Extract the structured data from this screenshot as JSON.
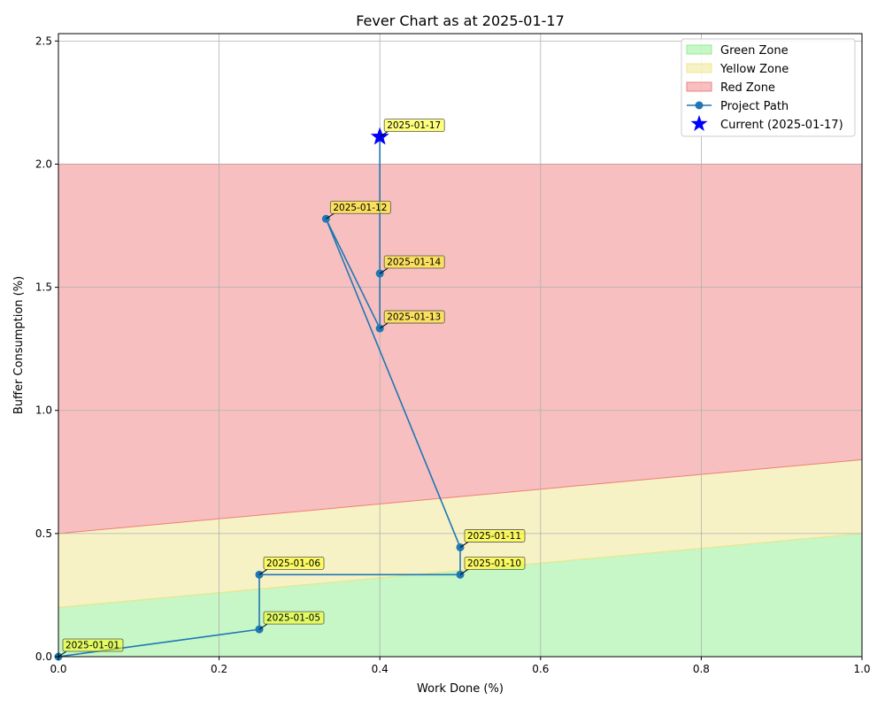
{
  "chart_data": {
    "type": "line",
    "title": "Fever Chart as at 2025-01-17",
    "xlabel": "Work Done (%)",
    "ylabel": "Buffer Consumption (%)",
    "xlim": [
      0,
      1
    ],
    "ylim": [
      0,
      2.53
    ],
    "xticks": [
      0.0,
      0.2,
      0.4,
      0.6,
      0.8,
      1.0
    ],
    "yticks": [
      0.0,
      0.5,
      1.0,
      1.5,
      2.0,
      2.5
    ],
    "xtick_labels": [
      "0.0",
      "0.2",
      "0.4",
      "0.6",
      "0.8",
      "1.0"
    ],
    "ytick_labels": [
      "0.0",
      "0.5",
      "1.0",
      "1.5",
      "2.0",
      "2.5"
    ],
    "grid": true,
    "legend_position": "top-right",
    "zones": [
      {
        "name": "Green Zone",
        "color": "#90ee90",
        "lower": [
          [
            0,
            0
          ],
          [
            1,
            0
          ]
        ],
        "upper": [
          [
            0,
            0.2
          ],
          [
            1,
            0.5
          ]
        ]
      },
      {
        "name": "Yellow Zone",
        "color": "#f0e68c",
        "lower": [
          [
            0,
            0.2
          ],
          [
            1,
            0.5
          ]
        ],
        "upper": [
          [
            0,
            0.5
          ],
          [
            1,
            0.8
          ]
        ]
      },
      {
        "name": "Red Zone",
        "color": "#f08080",
        "lower": [
          [
            0,
            0.5
          ],
          [
            1,
            0.8
          ]
        ],
        "upper": [
          [
            0,
            2.0
          ],
          [
            1,
            2.0
          ]
        ]
      }
    ],
    "series": [
      {
        "name": "Project Path",
        "color": "#1f77b4",
        "points": [
          {
            "x": 0.0,
            "y": 0.0,
            "label": "2025-01-01"
          },
          {
            "x": 0.25,
            "y": 0.111,
            "label": "2025-01-05"
          },
          {
            "x": 0.25,
            "y": 0.333,
            "label": "2025-01-06"
          },
          {
            "x": 0.5,
            "y": 0.333,
            "label": "2025-01-10"
          },
          {
            "x": 0.5,
            "y": 0.444,
            "label": "2025-01-11"
          },
          {
            "x": 0.333,
            "y": 1.778,
            "label": "2025-01-12"
          },
          {
            "x": 0.4,
            "y": 1.333,
            "label": "2025-01-13"
          },
          {
            "x": 0.4,
            "y": 1.556,
            "label": "2025-01-14"
          },
          {
            "x": 0.4,
            "y": 2.111,
            "label": "2025-01-17"
          }
        ]
      }
    ],
    "current": {
      "name": "Current (2025-01-17)",
      "x": 0.4,
      "y": 2.111,
      "color": "#0000ff"
    },
    "annotation_color": "#ffff00"
  }
}
